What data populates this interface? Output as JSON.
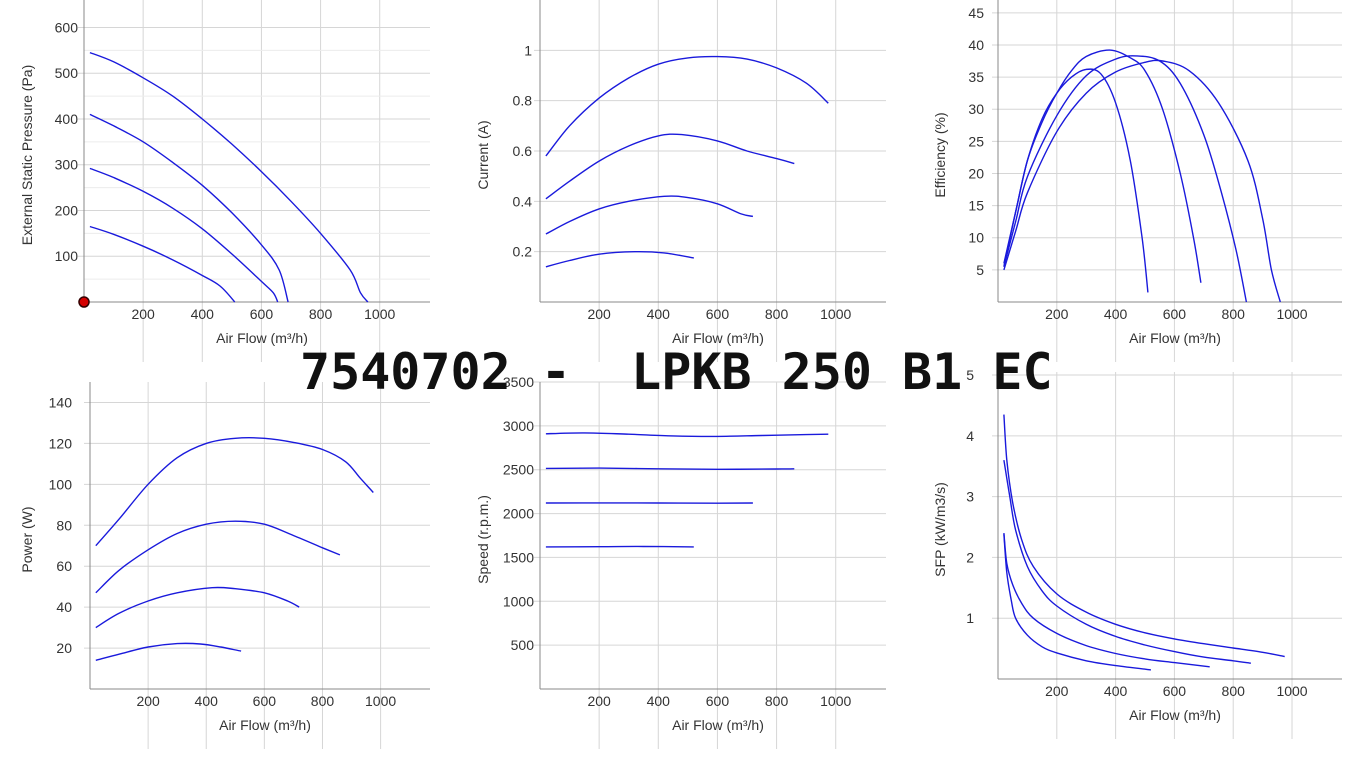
{
  "title": "7540702 -  LPKB 250 B1 EC",
  "colors": {
    "curve": "#1a1adc",
    "grid": "#d6d6d6",
    "axis": "#888888",
    "marker": "#d40000"
  },
  "chart_data": [
    {
      "id": "pressure",
      "type": "line",
      "xlabel": "Air Flow (m³/h)",
      "ylabel": "External Static Pressure (Pa)",
      "xlim": [
        0,
        1170
      ],
      "ylim": [
        0,
        660
      ],
      "xticks": [
        200,
        400,
        600,
        800,
        1000
      ],
      "yticks": [
        100,
        200,
        300,
        400,
        500,
        600
      ],
      "yminor": true,
      "marker": {
        "x": 0,
        "y": 0
      },
      "series": [
        {
          "points": [
            [
              20,
              545
            ],
            [
              100,
              525
            ],
            [
              200,
              490
            ],
            [
              300,
              450
            ],
            [
              400,
              400
            ],
            [
              500,
              345
            ],
            [
              600,
              285
            ],
            [
              700,
              220
            ],
            [
              800,
              150
            ],
            [
              900,
              70
            ],
            [
              935,
              20
            ],
            [
              960,
              0
            ]
          ]
        },
        {
          "points": [
            [
              20,
              410
            ],
            [
              100,
              385
            ],
            [
              200,
              350
            ],
            [
              300,
              305
            ],
            [
              400,
              255
            ],
            [
              500,
              195
            ],
            [
              600,
              125
            ],
            [
              660,
              70
            ],
            [
              690,
              0
            ]
          ]
        },
        {
          "points": [
            [
              20,
              292
            ],
            [
              100,
              272
            ],
            [
              200,
              242
            ],
            [
              300,
              205
            ],
            [
              400,
              160
            ],
            [
              500,
              105
            ],
            [
              600,
              45
            ],
            [
              640,
              20
            ],
            [
              655,
              0
            ]
          ]
        },
        {
          "points": [
            [
              20,
              165
            ],
            [
              100,
              148
            ],
            [
              200,
              122
            ],
            [
              300,
              92
            ],
            [
              400,
              58
            ],
            [
              460,
              35
            ],
            [
              510,
              0
            ]
          ]
        }
      ]
    },
    {
      "id": "current",
      "type": "line",
      "xlabel": "Air Flow (m³/h)",
      "ylabel": "Current (A)",
      "xlim": [
        0,
        1170
      ],
      "ylim": [
        0,
        1.2
      ],
      "xticks": [
        200,
        400,
        600,
        800,
        1000
      ],
      "yticks": [
        0.2,
        0.4,
        0.6,
        0.8,
        1
      ],
      "yticklabels": [
        "0.2",
        "0.4",
        "0.6",
        "0.8",
        "1"
      ],
      "series": [
        {
          "points": [
            [
              20,
              0.58
            ],
            [
              100,
              0.7
            ],
            [
              200,
              0.81
            ],
            [
              300,
              0.89
            ],
            [
              400,
              0.945
            ],
            [
              500,
              0.97
            ],
            [
              600,
              0.975
            ],
            [
              700,
              0.965
            ],
            [
              800,
              0.93
            ],
            [
              900,
              0.87
            ],
            [
              975,
              0.79
            ]
          ]
        },
        {
          "points": [
            [
              20,
              0.41
            ],
            [
              100,
              0.48
            ],
            [
              200,
              0.56
            ],
            [
              300,
              0.62
            ],
            [
              400,
              0.66
            ],
            [
              480,
              0.665
            ],
            [
              600,
              0.64
            ],
            [
              700,
              0.6
            ],
            [
              800,
              0.57
            ],
            [
              860,
              0.55
            ]
          ]
        },
        {
          "points": [
            [
              20,
              0.27
            ],
            [
              100,
              0.32
            ],
            [
              200,
              0.37
            ],
            [
              300,
              0.4
            ],
            [
              420,
              0.42
            ],
            [
              500,
              0.415
            ],
            [
              600,
              0.39
            ],
            [
              680,
              0.35
            ],
            [
              720,
              0.34
            ]
          ]
        },
        {
          "points": [
            [
              20,
              0.14
            ],
            [
              100,
              0.165
            ],
            [
              200,
              0.19
            ],
            [
              320,
              0.2
            ],
            [
              420,
              0.195
            ],
            [
              520,
              0.175
            ]
          ]
        }
      ]
    },
    {
      "id": "efficiency",
      "type": "line",
      "xlabel": "Air Flow (m³/h)",
      "ylabel": "Efficiency (%)",
      "xlim": [
        0,
        1170
      ],
      "ylim": [
        0,
        47
      ],
      "xticks": [
        200,
        400,
        600,
        800,
        1000
      ],
      "yticks": [
        5,
        10,
        15,
        20,
        25,
        30,
        35,
        40,
        45
      ],
      "series": [
        {
          "points": [
            [
              20,
              6
            ],
            [
              60,
              14
            ],
            [
              100,
              22
            ],
            [
              150,
              28.5
            ],
            [
              200,
              32.5
            ],
            [
              250,
              35
            ],
            [
              300,
              36.2
            ],
            [
              350,
              35.5
            ],
            [
              400,
              31
            ],
            [
              450,
              22
            ],
            [
              490,
              10
            ],
            [
              510,
              1.5
            ]
          ]
        },
        {
          "points": [
            [
              20,
              5.5
            ],
            [
              60,
              14
            ],
            [
              100,
              22
            ],
            [
              150,
              28
            ],
            [
              200,
              32.5
            ],
            [
              250,
              36
            ],
            [
              300,
              38.2
            ],
            [
              380,
              39.2
            ],
            [
              450,
              38
            ],
            [
              500,
              36
            ],
            [
              560,
              30
            ],
            [
              620,
              20
            ],
            [
              665,
              10
            ],
            [
              690,
              3
            ]
          ]
        },
        {
          "points": [
            [
              20,
              5.5
            ],
            [
              60,
              12.5
            ],
            [
              100,
              19.5
            ],
            [
              200,
              29
            ],
            [
              300,
              35.2
            ],
            [
              400,
              37.8
            ],
            [
              470,
              38.3
            ],
            [
              550,
              37.5
            ],
            [
              620,
              34
            ],
            [
              700,
              26
            ],
            [
              760,
              17
            ],
            [
              810,
              8
            ],
            [
              845,
              0
            ]
          ]
        },
        {
          "points": [
            [
              20,
              5
            ],
            [
              60,
              11
            ],
            [
              100,
              17
            ],
            [
              200,
              26.5
            ],
            [
              300,
              32.5
            ],
            [
              400,
              35.8
            ],
            [
              500,
              37.3
            ],
            [
              560,
              37.5
            ],
            [
              650,
              36
            ],
            [
              750,
              31
            ],
            [
              850,
              22
            ],
            [
              900,
              13
            ],
            [
              930,
              5
            ],
            [
              960,
              0
            ]
          ]
        }
      ]
    },
    {
      "id": "power",
      "type": "line",
      "xlabel": "Air Flow (m³/h)",
      "ylabel": "Power (W)",
      "xlim": [
        0,
        1170
      ],
      "ylim": [
        0,
        150
      ],
      "xticks": [
        200,
        400,
        600,
        800,
        1000
      ],
      "yticks": [
        20,
        40,
        60,
        80,
        100,
        120,
        140
      ],
      "series": [
        {
          "points": [
            [
              20,
              70
            ],
            [
              100,
              83
            ],
            [
              200,
              100
            ],
            [
              300,
              113
            ],
            [
              400,
              120
            ],
            [
              500,
              122.5
            ],
            [
              600,
              122.5
            ],
            [
              700,
              120.5
            ],
            [
              800,
              117
            ],
            [
              880,
              111
            ],
            [
              930,
              103
            ],
            [
              975,
              96
            ]
          ]
        },
        {
          "points": [
            [
              20,
              47
            ],
            [
              100,
              58
            ],
            [
              200,
              68
            ],
            [
              300,
              76
            ],
            [
              400,
              80.5
            ],
            [
              500,
              82
            ],
            [
              600,
              80.5
            ],
            [
              700,
              75
            ],
            [
              800,
              69
            ],
            [
              860,
              65.5
            ]
          ]
        },
        {
          "points": [
            [
              20,
              30
            ],
            [
              100,
              37
            ],
            [
              200,
              43
            ],
            [
              300,
              47
            ],
            [
              420,
              49.5
            ],
            [
              500,
              49
            ],
            [
              600,
              47
            ],
            [
              680,
              43
            ],
            [
              720,
              40
            ]
          ]
        },
        {
          "points": [
            [
              20,
              14
            ],
            [
              100,
              17
            ],
            [
              200,
              20.5
            ],
            [
              300,
              22.2
            ],
            [
              380,
              22
            ],
            [
              450,
              20.5
            ],
            [
              520,
              18.5
            ]
          ]
        }
      ]
    },
    {
      "id": "speed",
      "type": "line",
      "xlabel": "Air Flow (m³/h)",
      "ylabel": "Speed (r.p.m.)",
      "xlim": [
        0,
        1170
      ],
      "ylim": [
        0,
        3500
      ],
      "xticks": [
        200,
        400,
        600,
        800,
        1000
      ],
      "yticks": [
        500,
        1000,
        1500,
        2000,
        2500,
        3000,
        3500
      ],
      "series": [
        {
          "points": [
            [
              20,
              2910
            ],
            [
              150,
              2920
            ],
            [
              300,
              2905
            ],
            [
              450,
              2885
            ],
            [
              600,
              2880
            ],
            [
              750,
              2890
            ],
            [
              900,
              2900
            ],
            [
              975,
              2905
            ]
          ]
        },
        {
          "points": [
            [
              20,
              2515
            ],
            [
              200,
              2518
            ],
            [
              400,
              2510
            ],
            [
              600,
              2505
            ],
            [
              800,
              2508
            ],
            [
              860,
              2510
            ]
          ]
        },
        {
          "points": [
            [
              20,
              2120
            ],
            [
              200,
              2122
            ],
            [
              400,
              2120
            ],
            [
              600,
              2118
            ],
            [
              720,
              2120
            ]
          ]
        },
        {
          "points": [
            [
              20,
              1620
            ],
            [
              200,
              1622
            ],
            [
              350,
              1625
            ],
            [
              520,
              1620
            ]
          ]
        }
      ]
    },
    {
      "id": "sfp",
      "type": "line",
      "xlabel": "Air Flow (m³/h)",
      "ylabel": "SFP (kW/m3/s)",
      "xlim": [
        0,
        1170
      ],
      "ylim": [
        0,
        5.05
      ],
      "xticks": [
        200,
        400,
        600,
        800,
        1000
      ],
      "yticks": [
        1,
        2,
        3,
        4,
        5
      ],
      "series": [
        {
          "points": [
            [
              20,
              4.35
            ],
            [
              30,
              3.6
            ],
            [
              50,
              2.9
            ],
            [
              80,
              2.3
            ],
            [
              120,
              1.85
            ],
            [
              200,
              1.4
            ],
            [
              300,
              1.1
            ],
            [
              400,
              0.9
            ],
            [
              500,
              0.76
            ],
            [
              600,
              0.66
            ],
            [
              700,
              0.58
            ],
            [
              800,
              0.51
            ],
            [
              900,
              0.44
            ],
            [
              975,
              0.37
            ]
          ]
        },
        {
          "points": [
            [
              20,
              3.6
            ],
            [
              40,
              3.0
            ],
            [
              60,
              2.45
            ],
            [
              100,
              1.85
            ],
            [
              150,
              1.45
            ],
            [
              200,
              1.2
            ],
            [
              300,
              0.9
            ],
            [
              400,
              0.7
            ],
            [
              500,
              0.56
            ],
            [
              600,
              0.45
            ],
            [
              700,
              0.36
            ],
            [
              800,
              0.3
            ],
            [
              860,
              0.26
            ]
          ]
        },
        {
          "points": [
            [
              20,
              2.4
            ],
            [
              30,
              1.9
            ],
            [
              50,
              1.55
            ],
            [
              80,
              1.25
            ],
            [
              120,
              1.0
            ],
            [
              200,
              0.75
            ],
            [
              300,
              0.55
            ],
            [
              400,
              0.42
            ],
            [
              500,
              0.33
            ],
            [
              600,
              0.27
            ],
            [
              720,
              0.2
            ]
          ]
        },
        {
          "points": [
            [
              20,
              2.38
            ],
            [
              30,
              1.75
            ],
            [
              45,
              1.3
            ],
            [
              60,
              1.0
            ],
            [
              100,
              0.72
            ],
            [
              150,
              0.53
            ],
            [
              200,
              0.43
            ],
            [
              300,
              0.3
            ],
            [
              400,
              0.22
            ],
            [
              520,
              0.15
            ]
          ]
        }
      ]
    }
  ]
}
